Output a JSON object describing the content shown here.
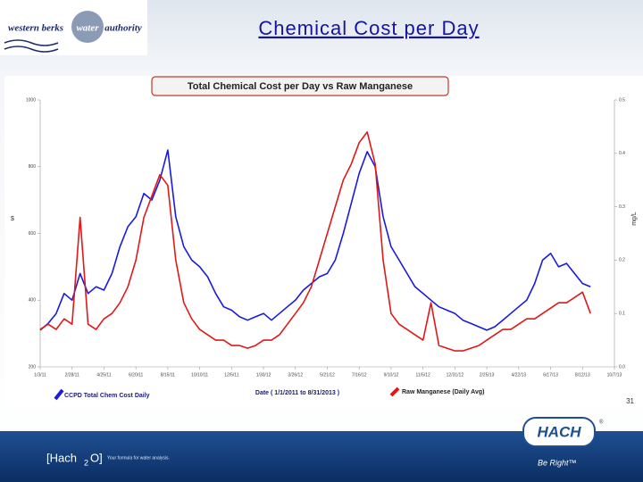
{
  "slide_title": "Chemical Cost per Day",
  "logo": {
    "left": "western berks",
    "middle": "water",
    "right": "authority"
  },
  "page_number": "31",
  "footer": {
    "brand_left": "[Hach",
    "brand_sub": "2",
    "brand_right": "O]",
    "tagline": "Your formula for water analysis.",
    "hach": "HACH",
    "registered": "®",
    "slogan": "Be Right™"
  },
  "chart_data": {
    "type": "line",
    "title": "Total Chemical Cost per Day vs Raw Manganese",
    "x_label": "Date  ( 1/1/2011  to  8/31/2013 )",
    "y_label": "$",
    "y2_label": "mg/L",
    "ylim": [
      200,
      1000
    ],
    "yticks": [
      200,
      400,
      600,
      800,
      1000
    ],
    "y2lim": [
      0,
      0.5
    ],
    "y2ticks": [
      {
        "value": 0,
        "label": "0.0"
      },
      0.1,
      0.2,
      0.3,
      0.4,
      0.5
    ],
    "categories": [
      "1/3/11",
      null,
      null,
      null,
      "2/28/11",
      null,
      null,
      null,
      "4/25/11",
      null,
      null,
      null,
      "6/20/11",
      null,
      null,
      null,
      "8/15/11",
      null,
      null,
      null,
      "10/10/11",
      null,
      null,
      null,
      "12/5/11",
      null,
      null,
      null,
      "1/30/12",
      null,
      null,
      null,
      "3/26/12",
      null,
      null,
      null,
      "5/21/12",
      null,
      null,
      null,
      "7/16/12",
      null,
      null,
      null,
      "9/10/12",
      null,
      null,
      null,
      "11/5/12",
      null,
      null,
      null,
      "12/31/12",
      null,
      null,
      null,
      "2/25/13",
      null,
      null,
      null,
      "4/22/13",
      null,
      null,
      null,
      "6/17/13",
      null,
      null,
      null,
      "8/12/13",
      null,
      null,
      null,
      "10/7/13"
    ],
    "series": [
      {
        "name": "CCPD Total Chem Cost Daily",
        "color": "#1a1adf",
        "axis": "y",
        "values": [
          310,
          330,
          360,
          420,
          400,
          480,
          420,
          440,
          430,
          480,
          560,
          620,
          650,
          720,
          700,
          760,
          850,
          650,
          560,
          520,
          500,
          470,
          420,
          380,
          370,
          350,
          340,
          350,
          360,
          340,
          360,
          380,
          400,
          430,
          450,
          470,
          480,
          520,
          600,
          690,
          780,
          845,
          800,
          650,
          560,
          520,
          480,
          440,
          420,
          400,
          380,
          370,
          360,
          340,
          330,
          320,
          310,
          320,
          340,
          360,
          380,
          400,
          450,
          520,
          540,
          500,
          510,
          480,
          450,
          440,
          null,
          null,
          null
        ]
      },
      {
        "name": "Raw Manganese (Daily Avg)",
        "color": "#e01818",
        "axis": "y2",
        "values": [
          0.07,
          0.08,
          0.07,
          0.09,
          0.08,
          0.28,
          0.08,
          0.07,
          0.09,
          0.1,
          0.12,
          0.15,
          0.2,
          0.28,
          0.32,
          0.36,
          0.34,
          0.2,
          0.12,
          0.09,
          0.07,
          0.06,
          0.05,
          0.05,
          0.04,
          0.04,
          0.035,
          0.04,
          0.05,
          0.05,
          0.06,
          0.08,
          0.1,
          0.12,
          0.15,
          0.2,
          0.25,
          0.3,
          0.35,
          0.38,
          0.42,
          0.44,
          0.38,
          0.2,
          0.1,
          0.08,
          0.07,
          0.06,
          0.05,
          0.12,
          0.04,
          0.035,
          0.03,
          0.03,
          0.035,
          0.04,
          0.05,
          0.06,
          0.07,
          0.07,
          0.08,
          0.09,
          0.09,
          0.1,
          0.11,
          0.12,
          0.12,
          0.13,
          0.14,
          0.1,
          null,
          null,
          null
        ]
      }
    ]
  }
}
